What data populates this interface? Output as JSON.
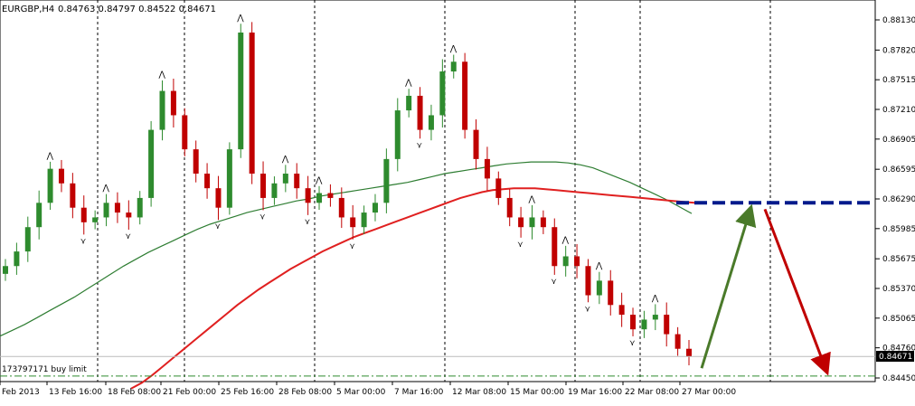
{
  "header": {
    "symbol_tf": "EURGBP,H4",
    "ohlc": "0.84763 0.84797 0.84522 0.84671"
  },
  "order_label": "173797171 buy limit",
  "current_price_label": "0.84671",
  "colors": {
    "background": "#ffffff",
    "bull": "#2e8b2e",
    "bear": "#c00000",
    "ma_fast": "#2e7d32",
    "ma_slow": "#e02020",
    "level_line": "#001a8c",
    "arrow_up": "#4a7a2a",
    "arrow_down": "#c00000",
    "grid": "#000000"
  },
  "chart_data": {
    "type": "candlestick",
    "title": "EURGBP,H4",
    "y_ticks": [
      "0.88130",
      "0.87820",
      "0.87515",
      "0.87210",
      "0.86905",
      "0.86595",
      "0.86290",
      "0.85985",
      "0.85675",
      "0.85370",
      "0.85065",
      "0.84760",
      "0.84450"
    ],
    "ylim": [
      0.8445,
      0.8813
    ],
    "x_ticks": [
      "Feb 2013",
      "13 Feb 16:00",
      "18 Feb 08:00",
      "21 Feb 00:00",
      "25 Feb 16:00",
      "28 Feb 08:00",
      "5 Mar 00:00",
      "7 Mar 16:00",
      "12 Mar 08:00",
      "15 Mar 00:00",
      "19 Mar 16:00",
      "22 Mar 08:00",
      "27 Mar 00:00"
    ],
    "close_series": [
      0.856,
      0.8575,
      0.86,
      0.8625,
      0.866,
      0.8645,
      0.862,
      0.8605,
      0.861,
      0.8625,
      0.8615,
      0.861,
      0.863,
      0.87,
      0.874,
      0.8715,
      0.868,
      0.8655,
      0.864,
      0.862,
      0.868,
      0.88,
      0.8655,
      0.863,
      0.8645,
      0.8655,
      0.864,
      0.8625,
      0.8635,
      0.863,
      0.861,
      0.86,
      0.8615,
      0.8625,
      0.867,
      0.872,
      0.8735,
      0.87,
      0.8715,
      0.876,
      0.877,
      0.87,
      0.867,
      0.865,
      0.863,
      0.861,
      0.86,
      0.861,
      0.86,
      0.856,
      0.857,
      0.856,
      0.853,
      0.8545,
      0.852,
      0.851,
      0.8495,
      0.8505,
      0.851,
      0.849,
      0.8475,
      0.8467
    ],
    "ma_fast": [
      0.8488,
      0.8494,
      0.85,
      0.8507,
      0.8514,
      0.8521,
      0.8528,
      0.8536,
      0.8544,
      0.8552,
      0.856,
      0.8567,
      0.8574,
      0.858,
      0.8586,
      0.8592,
      0.8598,
      0.8603,
      0.8607,
      0.8611,
      0.8615,
      0.8618,
      0.8621,
      0.8624,
      0.8627,
      0.8629,
      0.8632,
      0.8634,
      0.8636,
      0.8638,
      0.864,
      0.8642,
      0.8644,
      0.8646,
      0.8649,
      0.8652,
      0.8655,
      0.8657,
      0.8659,
      0.8661,
      0.8663,
      0.8665,
      0.8666,
      0.8667,
      0.8667,
      0.8667,
      0.8666,
      0.8664,
      0.8661,
      0.8656,
      0.8651,
      0.8646,
      0.864,
      0.8634,
      0.8628,
      0.8621,
      0.8614
    ],
    "ma_slow": [
      0.8434,
      0.844,
      0.8448,
      0.8457,
      0.8466,
      0.8475,
      0.8484,
      0.8493,
      0.8502,
      0.8511,
      0.852,
      0.8528,
      0.8536,
      0.8543,
      0.855,
      0.8557,
      0.8563,
      0.8569,
      0.8575,
      0.858,
      0.8585,
      0.859,
      0.8594,
      0.8598,
      0.8602,
      0.8606,
      0.861,
      0.8614,
      0.8618,
      0.8622,
      0.8626,
      0.863,
      0.8633,
      0.8636,
      0.8638,
      0.8639,
      0.864,
      0.864,
      0.864,
      0.8639,
      0.8638,
      0.8637,
      0.8636,
      0.8635,
      0.8634,
      0.8633,
      0.8632,
      0.8631,
      0.863,
      0.8629,
      0.8628,
      0.8627,
      0.8626,
      0.8625
    ],
    "resistance_level": 0.8625,
    "current_price": 0.84671,
    "buy_limit_level": 0.8447,
    "projection": {
      "up_from": 0.8455,
      "up_to": 0.8624,
      "down_to": 0.8447
    }
  }
}
